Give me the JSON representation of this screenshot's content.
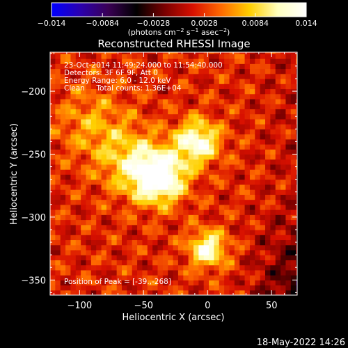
{
  "chart_data": {
    "type": "heatmap",
    "title": "Reconstructed RHESSI Image",
    "xlabel": "Heliocentric X (arcsec)",
    "ylabel": "Heliocentric Y (arcsec)",
    "xlim": [
      -123,
      70
    ],
    "ylim": [
      -362,
      -169
    ],
    "xticks": [
      -100,
      -50,
      0,
      50
    ],
    "yticks": [
      -200,
      -250,
      -300,
      -350
    ],
    "xtick_labels": [
      "−100",
      "−50",
      "0",
      "50"
    ],
    "ytick_labels": [
      "−200",
      "−250",
      "−300",
      "−350"
    ],
    "colorbar": {
      "range": [
        -0.014,
        0.014
      ],
      "ticks": [
        -0.014,
        -0.0084,
        -0.0028,
        0.0028,
        0.0084,
        0.014
      ],
      "tick_labels": [
        "−0.014",
        "−0.0084",
        "−0.0028",
        "0.0028",
        "0.0084",
        "0.014"
      ],
      "colors": [
        "#0000ff",
        "#2a00b0",
        "#3a0055",
        "#000000",
        "#7a0000",
        "#d81000",
        "#ff6a00",
        "#ffcf00",
        "#ffffbf",
        "#ffffff"
      ],
      "label_main": "(photons cm",
      "label_sup1": "−2",
      "label_mid": " s",
      "label_sup2": "−1",
      "label_mid2": " asec",
      "label_sup3": "−2",
      "label_end": ")"
    },
    "sources": [
      {
        "x": -38,
        "y": -268,
        "peak": 0.014,
        "sigma": 14
      },
      {
        "x": -8,
        "y": -240,
        "peak": 0.011,
        "sigma": 12
      },
      {
        "x": 0,
        "y": -325,
        "peak": 0.0105,
        "sigma": 10
      },
      {
        "x": -60,
        "y": -255,
        "peak": 0.006,
        "sigma": 18
      },
      {
        "x": -90,
        "y": -225,
        "peak": 0.004,
        "sigma": 20
      }
    ],
    "peak_position": [
      -39,
      -268
    ],
    "annotations": [
      "23-Oct-2014 11:49:24.000 to 11:54:40.000",
      "Detectors: 3F 6F 9F, Att 0",
      "Energy Range: 6.0 - 12.0 keV",
      "Clean     Total counts: 1.36E+04",
      "Position of Peak = [-39.,-268]"
    ]
  },
  "footer_date": "18-May-2022 14:26"
}
